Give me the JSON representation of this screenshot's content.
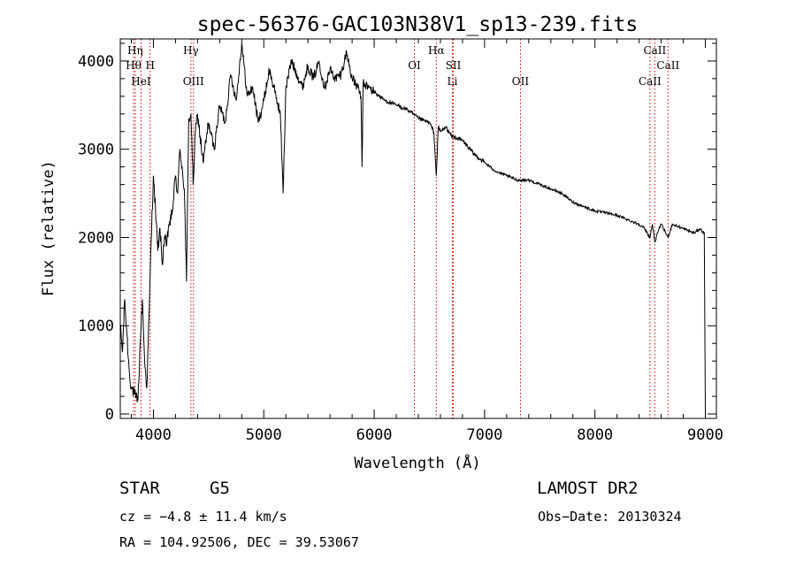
{
  "chart_data": {
    "type": "line",
    "title": "spec-56376-GAC103N38V1_sp13-239.fits",
    "xlabel": "Wavelength (Å)",
    "ylabel": "Flux (relative)",
    "xlim": [
      3700,
      9100
    ],
    "ylim": [
      -50,
      4250
    ],
    "xticks": [
      4000,
      5000,
      6000,
      7000,
      8000,
      9000
    ],
    "yticks": [
      0,
      1000,
      2000,
      3000,
      4000
    ],
    "grid": false,
    "series": [
      {
        "x": [
          3700,
          3720,
          3740,
          3760,
          3780,
          3800,
          3820,
          3840,
          3860,
          3880,
          3900,
          3920,
          3940,
          3960,
          3980,
          4000,
          4020,
          4040,
          4060,
          4080,
          4100,
          4120,
          4140,
          4160,
          4180,
          4200,
          4220,
          4240,
          4260,
          4280,
          4300,
          4320,
          4340,
          4360,
          4380,
          4400,
          4450,
          4500,
          4550,
          4600,
          4650,
          4700,
          4750,
          4800,
          4850,
          4900,
          4950,
          5000,
          5050,
          5100,
          5150,
          5175,
          5200,
          5250,
          5300,
          5350,
          5400,
          5450,
          5500,
          5550,
          5600,
          5650,
          5700,
          5750,
          5800,
          5850,
          5880,
          5890,
          5900,
          5950,
          6000,
          6100,
          6200,
          6300,
          6400,
          6500,
          6540,
          6563,
          6580,
          6600,
          6650,
          6700,
          6800,
          6900,
          7000,
          7100,
          7200,
          7300,
          7400,
          7500,
          7600,
          7700,
          7800,
          7900,
          8000,
          8100,
          8200,
          8300,
          8400,
          8450,
          8498,
          8520,
          8542,
          8580,
          8600,
          8662,
          8700,
          8800,
          8900,
          8950,
          8990,
          9000
        ],
        "values": [
          1000,
          700,
          1300,
          900,
          500,
          300,
          250,
          180,
          150,
          800,
          1300,
          600,
          300,
          1100,
          1950,
          2700,
          2300,
          1850,
          2100,
          1700,
          2000,
          1900,
          2150,
          2200,
          2400,
          2700,
          2500,
          3000,
          2800,
          2550,
          1500,
          3350,
          3400,
          2600,
          3200,
          3400,
          2850,
          3300,
          3000,
          3500,
          3300,
          3850,
          3550,
          4200,
          3600,
          3700,
          3300,
          3550,
          3900,
          3650,
          3400,
          2500,
          3700,
          4000,
          3850,
          3700,
          3950,
          3800,
          4000,
          3700,
          3900,
          3800,
          3850,
          4100,
          3800,
          3700,
          3600,
          2800,
          3750,
          3700,
          3650,
          3550,
          3500,
          3450,
          3350,
          3300,
          3200,
          2700,
          3250,
          3200,
          3250,
          3150,
          3100,
          2950,
          2850,
          2750,
          2700,
          2650,
          2650,
          2600,
          2550,
          2500,
          2400,
          2350,
          2300,
          2280,
          2250,
          2200,
          2150,
          2100,
          2000,
          2150,
          1950,
          2100,
          2150,
          2000,
          2150,
          2100,
          2050,
          2100,
          2050,
          0
        ]
      }
    ],
    "lines": [
      {
        "label": "Hη",
        "x": 3835,
        "row": 0
      },
      {
        "label": "Hθ",
        "x": 3820,
        "row": 1
      },
      {
        "label": "H",
        "x": 3970,
        "row": 1
      },
      {
        "label": "HeI",
        "x": 3888,
        "row": 2
      },
      {
        "label": "Hγ",
        "x": 4340,
        "row": 0
      },
      {
        "label": "OIII",
        "x": 4363,
        "row": 2
      },
      {
        "label": "OI",
        "x": 6364,
        "row": 1
      },
      {
        "label": "Hα",
        "x": 6563,
        "row": 0
      },
      {
        "label": "SII",
        "x": 6717,
        "row": 1
      },
      {
        "label": "Li",
        "x": 6708,
        "row": 2
      },
      {
        "label": "OII",
        "x": 7325,
        "row": 2
      },
      {
        "label": "CaII",
        "x": 8542,
        "row": 0
      },
      {
        "label": "CaII",
        "x": 8662,
        "row": 1
      },
      {
        "label": "CaII",
        "x": 8498,
        "row": 2
      }
    ]
  },
  "info": {
    "object_class": "STAR",
    "subclass": "G5",
    "survey": "LAMOST DR2",
    "cz": "cz = −4.8 ± 11.4 km/s",
    "obs_date": "Obs−Date: 20130324",
    "coords": "RA = 104.92506, DEC =  39.53067"
  },
  "colors": {
    "spectrum": "#000000",
    "line_markers": "#d00000",
    "axes": "#000000",
    "background": "#ffffff"
  }
}
